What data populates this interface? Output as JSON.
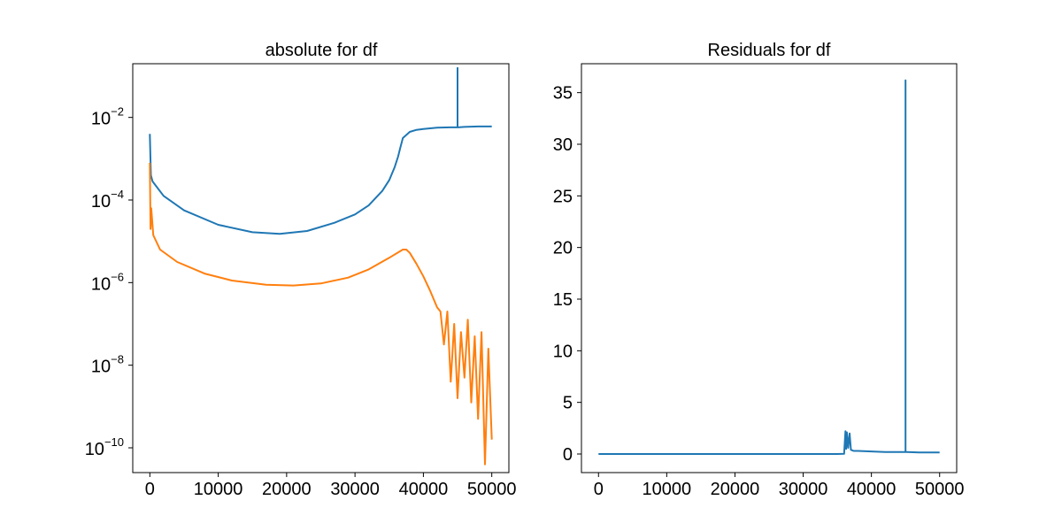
{
  "chart_data": [
    {
      "type": "line",
      "title": "absolute for df",
      "xlabel": "",
      "ylabel": "",
      "yscale": "log",
      "xlim": [
        -2500,
        52500
      ],
      "ylim_log10": [
        -10.6,
        -0.7
      ],
      "x_ticks": [
        "0",
        "10000",
        "20000",
        "30000",
        "40000",
        "50000"
      ],
      "x_tick_values": [
        0,
        10000,
        20000,
        30000,
        40000,
        50000
      ],
      "y_ticks": [
        {
          "base": "10",
          "exp": "−10",
          "value_log10": -10
        },
        {
          "base": "10",
          "exp": "−8",
          "value_log10": -8
        },
        {
          "base": "10",
          "exp": "−6",
          "value_log10": -6
        },
        {
          "base": "10",
          "exp": "−4",
          "value_log10": -4
        },
        {
          "base": "10",
          "exp": "−2",
          "value_log10": -2
        }
      ],
      "grid": false,
      "series": [
        {
          "color": "#1f77b4",
          "x": [
            0,
            150,
            400,
            2000,
            5000,
            10000,
            15000,
            19000,
            23000,
            27000,
            30000,
            32000,
            34000,
            35000,
            35800,
            36300,
            36600,
            37000,
            38000,
            39000,
            40000,
            42000,
            44000,
            45000,
            45000,
            45000,
            45100,
            46000,
            48000,
            50000
          ],
          "y_log10": [
            -2.4,
            -3.4,
            -3.55,
            -3.9,
            -4.25,
            -4.6,
            -4.78,
            -4.82,
            -4.75,
            -4.55,
            -4.35,
            -4.13,
            -3.78,
            -3.52,
            -3.2,
            -2.95,
            -2.75,
            -2.5,
            -2.35,
            -2.3,
            -2.28,
            -2.25,
            -2.24,
            -2.24,
            -0.8,
            -2.24,
            -2.24,
            -2.23,
            -2.22,
            -2.22
          ]
        },
        {
          "color": "#ff7f0e",
          "x": [
            0,
            100,
            200,
            500,
            1500,
            4000,
            8000,
            12000,
            17000,
            21000,
            25000,
            29000,
            32000,
            35000,
            37000,
            37500,
            38000,
            39000,
            40000,
            41000,
            42000,
            42500,
            43000,
            43500,
            44000,
            44500,
            45000,
            45500,
            46000,
            46500,
            47000,
            47500,
            48000,
            48500,
            49000,
            49500,
            50000
          ],
          "y_log10": [
            -3.1,
            -4.7,
            -4.2,
            -4.85,
            -5.2,
            -5.5,
            -5.78,
            -5.95,
            -6.05,
            -6.07,
            -6.02,
            -5.88,
            -5.68,
            -5.4,
            -5.2,
            -5.2,
            -5.28,
            -5.55,
            -5.85,
            -6.2,
            -6.6,
            -6.7,
            -7.5,
            -6.7,
            -8.4,
            -7.0,
            -8.8,
            -7.2,
            -8.3,
            -6.9,
            -8.9,
            -7.3,
            -9.3,
            -7.2,
            -10.4,
            -7.6,
            -9.8
          ]
        }
      ]
    },
    {
      "type": "line",
      "title": "Residuals for df",
      "xlabel": "",
      "ylabel": "",
      "xlim": [
        -2500,
        52500
      ],
      "ylim": [
        -1.8,
        37.8
      ],
      "x_ticks": [
        "0",
        "10000",
        "20000",
        "30000",
        "40000",
        "50000"
      ],
      "x_tick_values": [
        0,
        10000,
        20000,
        30000,
        40000,
        50000
      ],
      "y_ticks": [
        "0",
        "5",
        "10",
        "15",
        "20",
        "25",
        "30",
        "35"
      ],
      "y_tick_values": [
        0,
        5,
        10,
        15,
        20,
        25,
        30,
        35
      ],
      "grid": false,
      "series": [
        {
          "color": "#1f77b4",
          "x": [
            0,
            10000,
            20000,
            30000,
            35000,
            36000,
            36200,
            36300,
            36400,
            36600,
            36800,
            37000,
            37200,
            37400,
            38000,
            40000,
            42000,
            44000,
            45000,
            45000,
            45000,
            45200,
            47000,
            50000
          ],
          "y": [
            0,
            0,
            0,
            0,
            0,
            0.02,
            2.2,
            0.5,
            2.1,
            0.6,
            2.0,
            0.4,
            0.35,
            0.3,
            0.3,
            0.25,
            0.2,
            0.2,
            0.2,
            36.2,
            0.2,
            0.2,
            0.15,
            0.15
          ]
        }
      ]
    }
  ]
}
